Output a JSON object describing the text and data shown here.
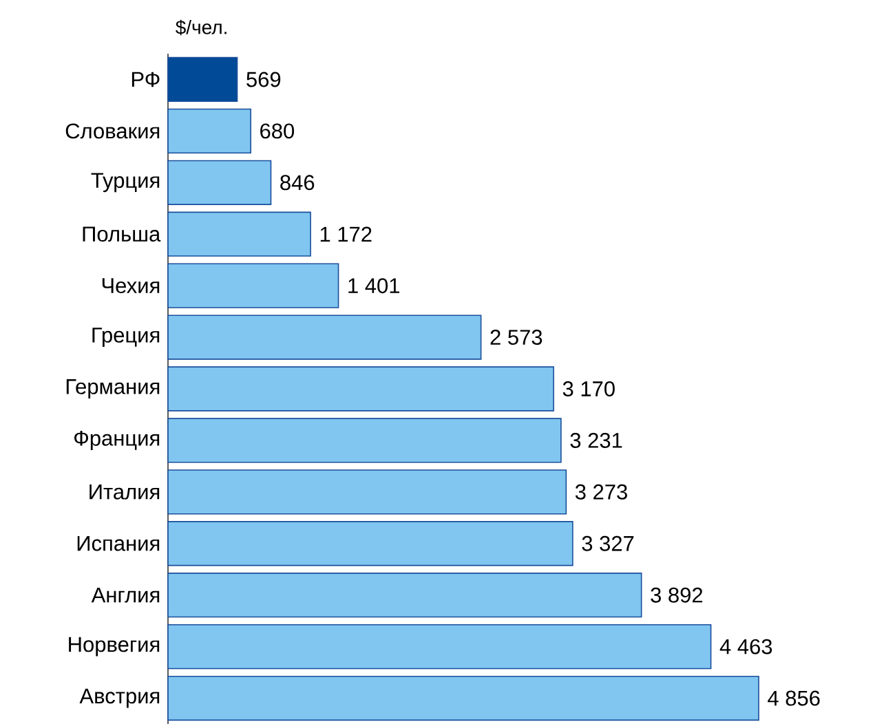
{
  "chart_data": {
    "type": "bar",
    "orientation": "horizontal",
    "title": "$/чел.",
    "categories": [
      "РФ",
      "Словакия",
      "Турция",
      "Польша",
      "Чехия",
      "Греция",
      "Германия",
      "Франция",
      "Италия",
      "Испания",
      "Англия",
      "Норвегия",
      "Австрия"
    ],
    "values": [
      569,
      680,
      846,
      1172,
      1401,
      2573,
      3170,
      3231,
      3273,
      3327,
      3892,
      4463,
      4856
    ],
    "value_labels": [
      "569",
      "680",
      "846",
      "1 172",
      "1 401",
      "2 573",
      "3 170",
      "3 231",
      "3 273",
      "3 327",
      "3 892",
      "4 463",
      "4 856"
    ],
    "colors": [
      "#004a97",
      "#80c6f0",
      "#80c6f0",
      "#80c6f0",
      "#80c6f0",
      "#80c6f0",
      "#80c6f0",
      "#80c6f0",
      "#80c6f0",
      "#80c6f0",
      "#80c6f0",
      "#80c6f0",
      "#80c6f0"
    ]
  }
}
